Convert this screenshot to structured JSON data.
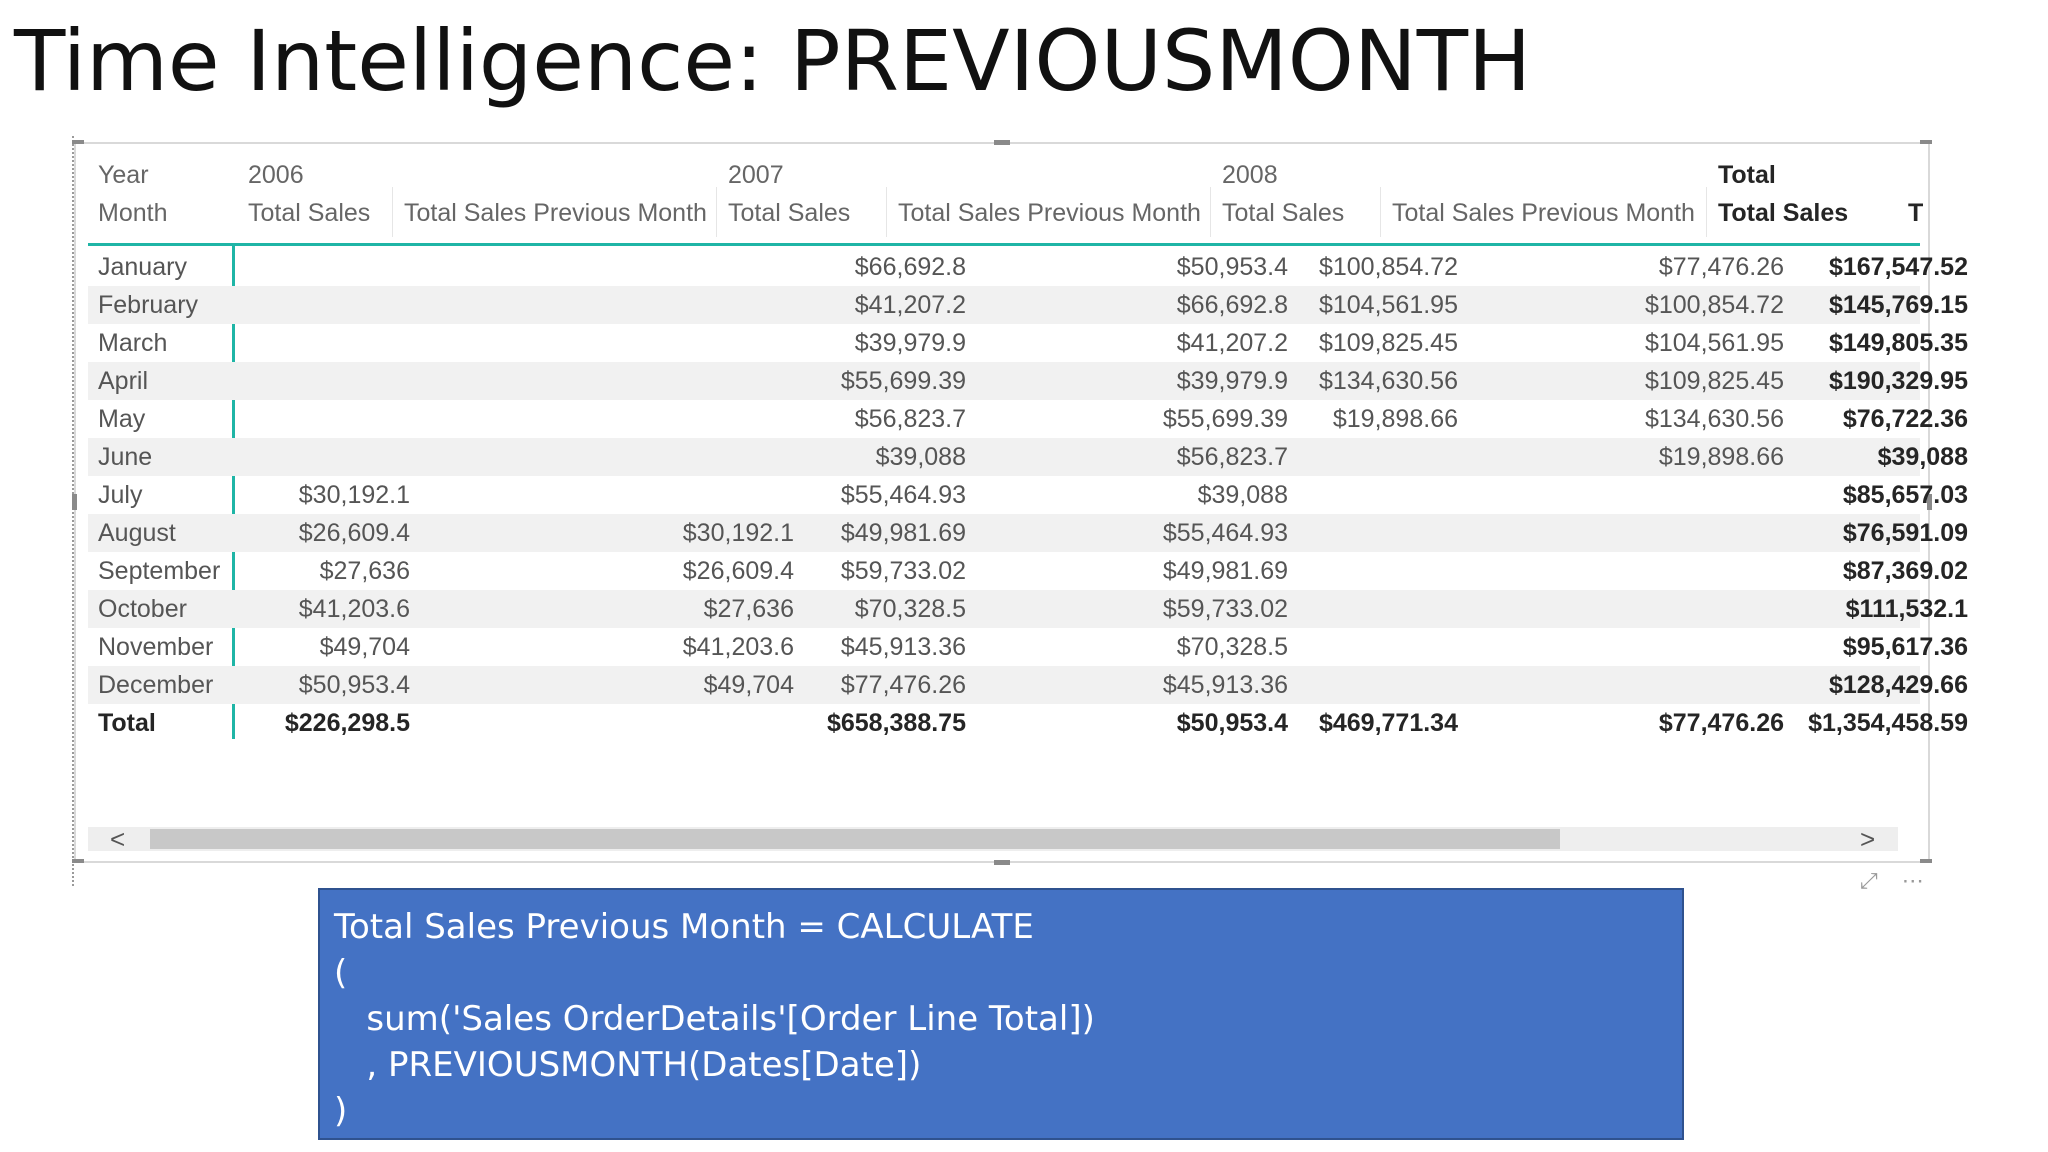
{
  "slide": {
    "title": "Time Intelligence: PREVIOUSMONTH"
  },
  "matrix": {
    "header_row1": {
      "row_label": "Year",
      "years": [
        "2006",
        "2007",
        "2008"
      ],
      "total": "Total"
    },
    "header_row2": {
      "row_label": "Month",
      "columns": [
        "Total Sales",
        "Total Sales Previous Month",
        "Total Sales",
        "Total Sales Previous Month",
        "Total Sales",
        "Total Sales Previous Month",
        "Total Sales"
      ],
      "overflow": "T"
    },
    "rows": [
      {
        "month": "January",
        "v": [
          "",
          "",
          "$66,692.8",
          "$50,953.4",
          "$100,854.72",
          "$77,476.26",
          "$167,547.52"
        ]
      },
      {
        "month": "February",
        "v": [
          "",
          "",
          "$41,207.2",
          "$66,692.8",
          "$104,561.95",
          "$100,854.72",
          "$145,769.15"
        ]
      },
      {
        "month": "March",
        "v": [
          "",
          "",
          "$39,979.9",
          "$41,207.2",
          "$109,825.45",
          "$104,561.95",
          "$149,805.35"
        ]
      },
      {
        "month": "April",
        "v": [
          "",
          "",
          "$55,699.39",
          "$39,979.9",
          "$134,630.56",
          "$109,825.45",
          "$190,329.95"
        ]
      },
      {
        "month": "May",
        "v": [
          "",
          "",
          "$56,823.7",
          "$55,699.39",
          "$19,898.66",
          "$134,630.56",
          "$76,722.36"
        ]
      },
      {
        "month": "June",
        "v": [
          "",
          "",
          "$39,088",
          "$56,823.7",
          "",
          "$19,898.66",
          "$39,088"
        ]
      },
      {
        "month": "July",
        "v": [
          "$30,192.1",
          "",
          "$55,464.93",
          "$39,088",
          "",
          "",
          "$85,657.03"
        ]
      },
      {
        "month": "August",
        "v": [
          "$26,609.4",
          "$30,192.1",
          "$49,981.69",
          "$55,464.93",
          "",
          "",
          "$76,591.09"
        ]
      },
      {
        "month": "September",
        "v": [
          "$27,636",
          "$26,609.4",
          "$59,733.02",
          "$49,981.69",
          "",
          "",
          "$87,369.02"
        ]
      },
      {
        "month": "October",
        "v": [
          "$41,203.6",
          "$27,636",
          "$70,328.5",
          "$59,733.02",
          "",
          "",
          "$111,532.1"
        ]
      },
      {
        "month": "November",
        "v": [
          "$49,704",
          "$41,203.6",
          "$45,913.36",
          "$70,328.5",
          "",
          "",
          "$95,617.36"
        ]
      },
      {
        "month": "December",
        "v": [
          "$50,953.4",
          "$49,704",
          "$77,476.26",
          "$45,913.36",
          "",
          "",
          "$128,429.66"
        ]
      }
    ],
    "total_row": {
      "label": "Total",
      "v": [
        "$226,298.5",
        "",
        "$658,388.75",
        "$50,953.4",
        "$469,771.34",
        "$77,476.26",
        "$1,354,458.59"
      ]
    }
  },
  "scrollbar": {
    "left_arrow": "<",
    "right_arrow": ">"
  },
  "visual_icons": {
    "focus": "focus-mode-icon",
    "more": "more-options-icon",
    "focus_glyph": "⤢",
    "more_glyph": "⋯"
  },
  "formula": {
    "lines": [
      "Total Sales Previous Month = CALCULATE",
      "(",
      "   sum('Sales OrderDetails'[Order Line Total])",
      "   , PREVIOUSMONTH(Dates[Date])",
      ")"
    ]
  }
}
